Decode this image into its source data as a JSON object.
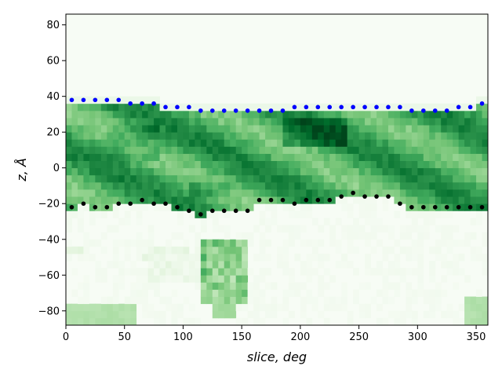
{
  "chart_data": {
    "type": "heatmap",
    "xlabel": "slice, deg",
    "ylabel": "z, Å",
    "xlim": [
      0,
      360
    ],
    "ylim": [
      -88,
      86
    ],
    "x_ticks": [
      0,
      50,
      100,
      150,
      200,
      250,
      300,
      350
    ],
    "y_ticks": [
      -80,
      -60,
      -40,
      -20,
      0,
      20,
      40,
      60,
      80
    ],
    "colormap": "Greens",
    "series": [
      {
        "color": "#0000ff",
        "x": [
          5,
          15,
          25,
          35,
          45,
          55,
          65,
          75,
          85,
          95,
          105,
          115,
          125,
          135,
          145,
          155,
          165,
          175,
          185,
          195,
          205,
          215,
          225,
          235,
          245,
          255,
          265,
          275,
          285,
          295,
          305,
          315,
          325,
          335,
          345,
          355
        ],
        "y": [
          38,
          38,
          38,
          38,
          38,
          36,
          36,
          36,
          34,
          34,
          34,
          32,
          32,
          32,
          32,
          32,
          32,
          32,
          32,
          34,
          34,
          34,
          34,
          34,
          34,
          34,
          34,
          34,
          34,
          32,
          32,
          32,
          32,
          34,
          34,
          36
        ]
      },
      {
        "color": "#000000",
        "x": [
          5,
          15,
          25,
          35,
          45,
          55,
          65,
          75,
          85,
          95,
          105,
          115,
          125,
          135,
          145,
          155,
          165,
          175,
          185,
          195,
          205,
          215,
          225,
          235,
          245,
          255,
          265,
          275,
          285,
          295,
          305,
          315,
          325,
          335,
          345,
          355
        ],
        "y": [
          -22,
          -20,
          -22,
          -22,
          -20,
          -20,
          -18,
          -20,
          -20,
          -22,
          -24,
          -26,
          -24,
          -24,
          -24,
          -24,
          -18,
          -18,
          -18,
          -20,
          -18,
          -18,
          -18,
          -16,
          -14,
          -16,
          -16,
          -16,
          -20,
          -22,
          -22,
          -22,
          -22,
          -22,
          -22,
          -22
        ]
      }
    ]
  }
}
